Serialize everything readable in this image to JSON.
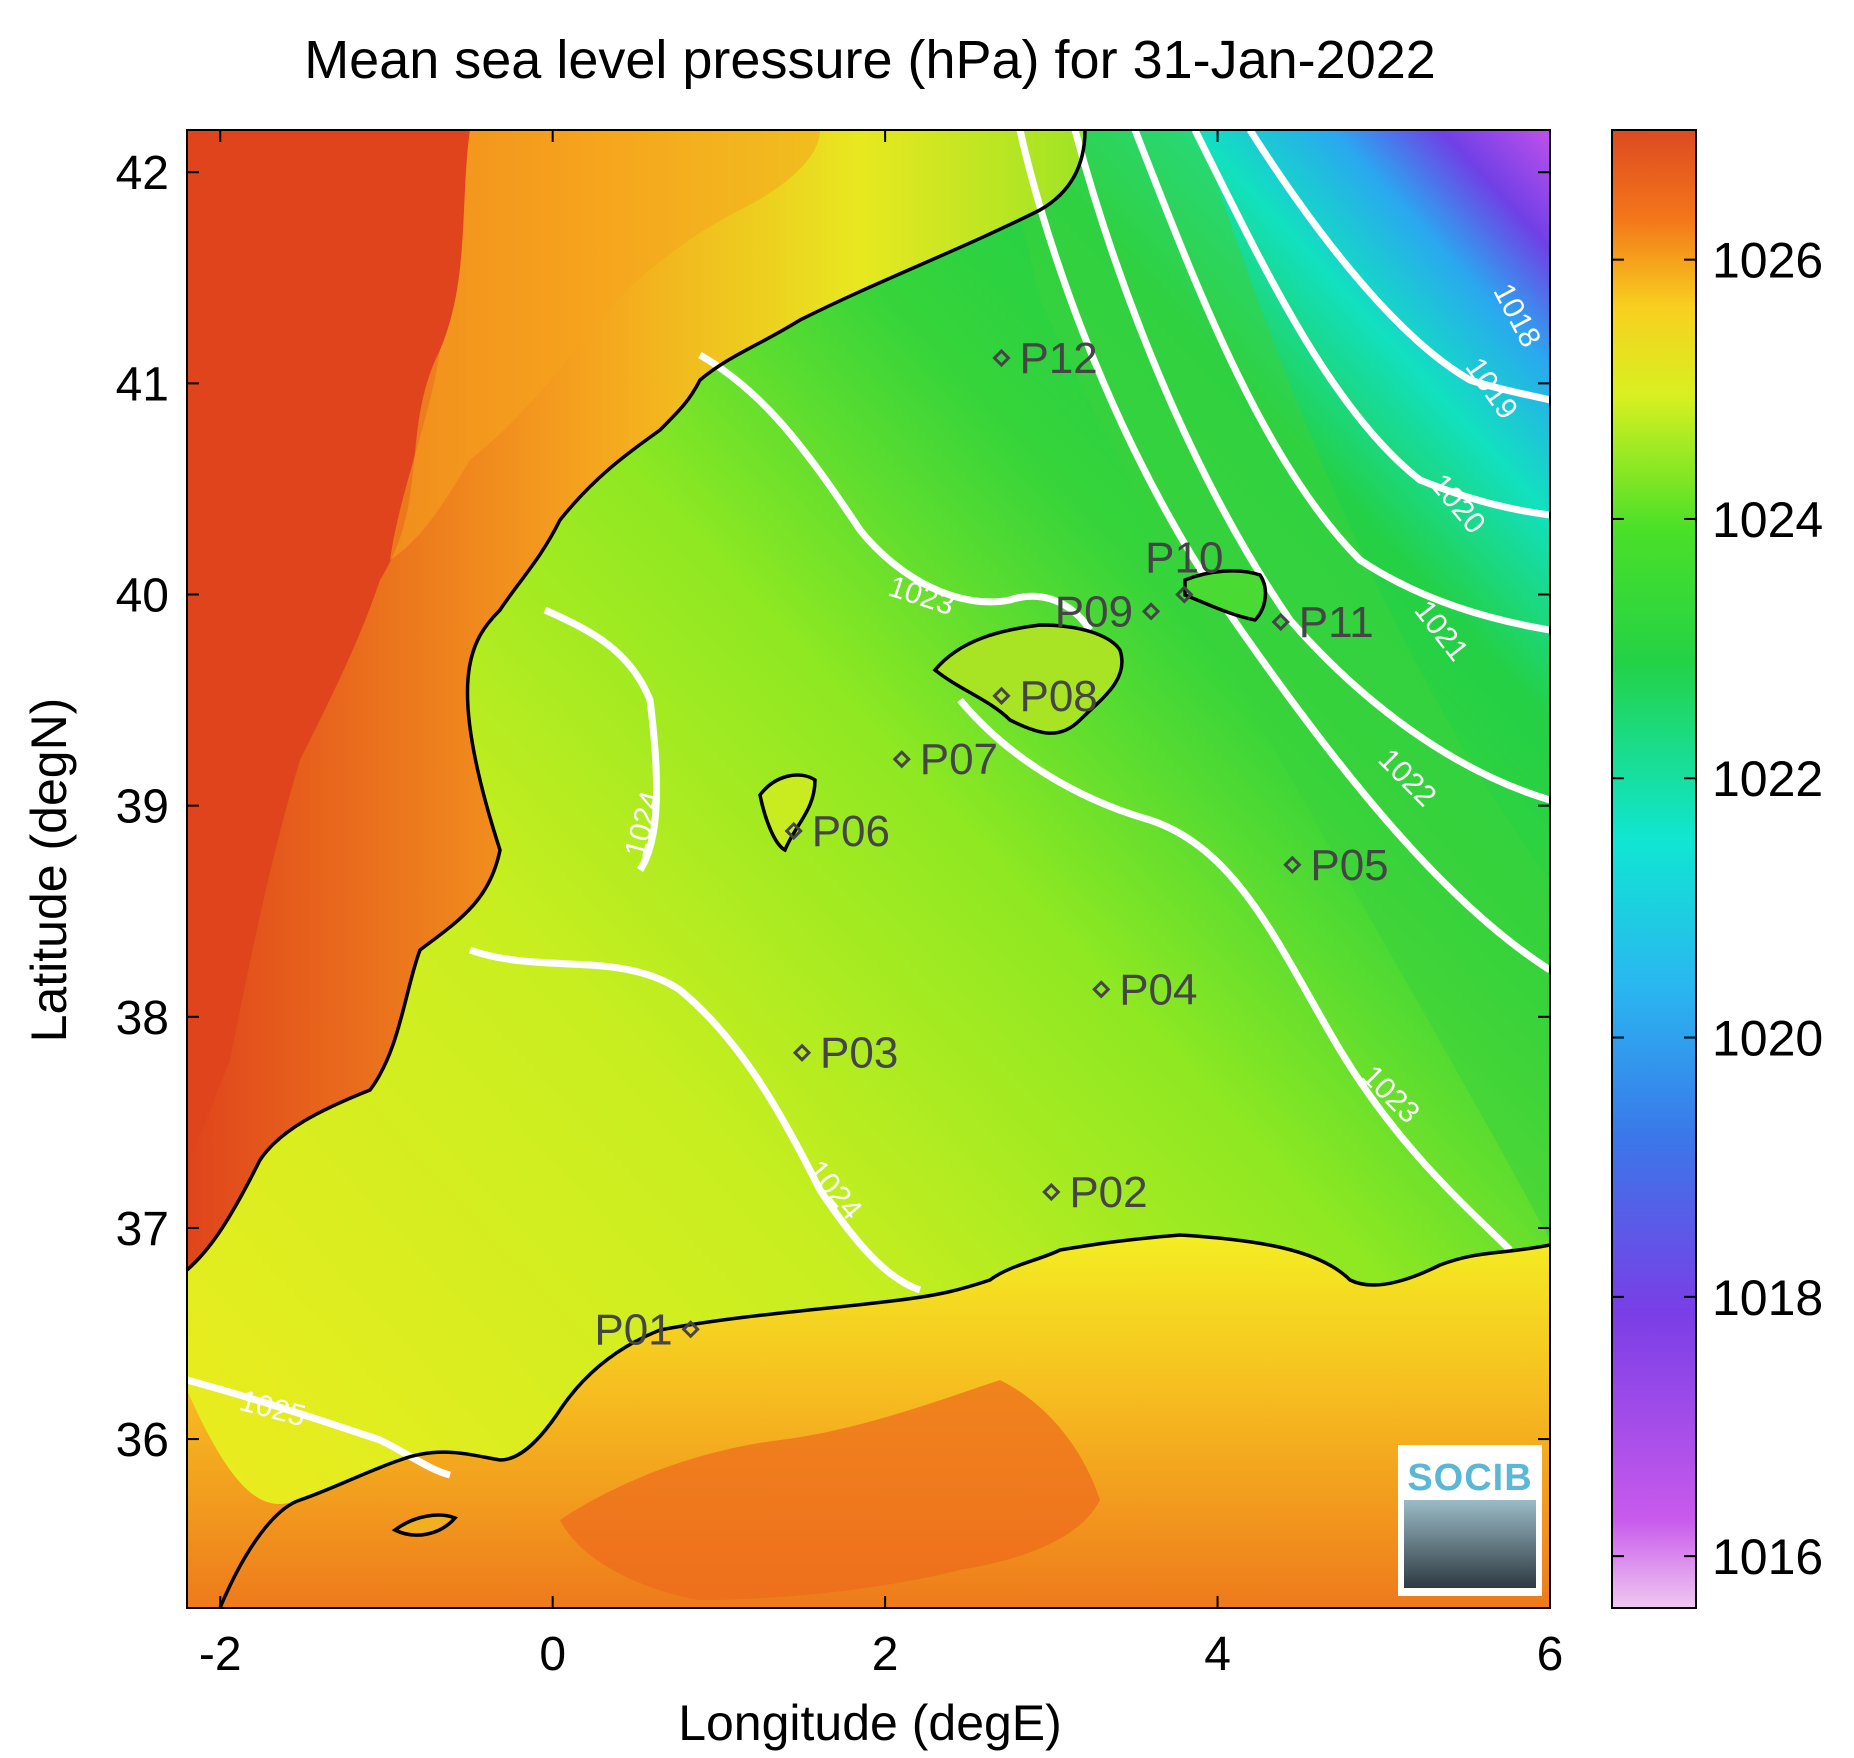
{
  "title": "Mean sea level pressure (hPa) for 31-Jan-2022",
  "xlabel": "Longitude (degE)",
  "ylabel": "Latitude (degN)",
  "logo_text": "SOCIB",
  "colors": {
    "land_high": "#e0441c",
    "land_mid": "#f5a81e",
    "sea_yellow": "#e6f020",
    "sea_green": "#2ed23a",
    "sea_cyan": "#10e6d2",
    "sea_blue": "#3a8ae8",
    "sea_purple": "#8a3ee6",
    "contour": "#ffffff",
    "coast": "#000000",
    "station": "#454545"
  },
  "chart_data": {
    "type": "heatmap",
    "title": "Mean sea level pressure (hPa) for 31-Jan-2022",
    "xlabel": "Longitude (degE)",
    "ylabel": "Latitude (degN)",
    "xlim": [
      -2.2,
      6.0
    ],
    "ylim": [
      35.2,
      42.2
    ],
    "xticks": [
      -2,
      0,
      2,
      4,
      6
    ],
    "xtick_labels": [
      "-2",
      "0",
      "2",
      "4",
      "6"
    ],
    "yticks": [
      36,
      37,
      38,
      39,
      40,
      41,
      42
    ],
    "ytick_labels": [
      "36",
      "37",
      "38",
      "39",
      "40",
      "41",
      "42"
    ],
    "colorbar": {
      "range": [
        1015.6,
        1027.0
      ],
      "ticks": [
        1016,
        1018,
        1020,
        1022,
        1024,
        1026
      ],
      "tick_labels": [
        "1016",
        "1018",
        "1020",
        "1022",
        "1024",
        "1026"
      ],
      "colormap": "jet-like"
    },
    "contour_labels": [
      {
        "text": "1018",
        "lon": 5.75,
        "lat": 41.3,
        "angle": 62
      },
      {
        "text": "1019",
        "lon": 5.6,
        "lat": 40.95,
        "angle": 55
      },
      {
        "text": "1020",
        "lon": 5.4,
        "lat": 40.4,
        "angle": 50
      },
      {
        "text": "1021",
        "lon": 5.3,
        "lat": 39.8,
        "angle": 52
      },
      {
        "text": "1022",
        "lon": 5.1,
        "lat": 39.1,
        "angle": 45
      },
      {
        "text": "1023",
        "lon": 2.2,
        "lat": 39.95,
        "angle": 18
      },
      {
        "text": "1023",
        "lon": 5.0,
        "lat": 37.6,
        "angle": 45
      },
      {
        "text": "1024",
        "lon": 0.6,
        "lat": 38.9,
        "angle": -75
      },
      {
        "text": "1024",
        "lon": 1.65,
        "lat": 37.15,
        "angle": 50
      },
      {
        "text": "1025",
        "lon": -1.7,
        "lat": 36.1,
        "angle": 15
      }
    ],
    "stations": [
      {
        "name": "P01",
        "lon": 0.83,
        "lat": 36.52,
        "label_side": "left"
      },
      {
        "name": "P02",
        "lon": 3.0,
        "lat": 37.17,
        "label_side": "right"
      },
      {
        "name": "P03",
        "lon": 1.5,
        "lat": 37.83,
        "label_side": "right"
      },
      {
        "name": "P04",
        "lon": 3.3,
        "lat": 38.13,
        "label_side": "right"
      },
      {
        "name": "P05",
        "lon": 4.45,
        "lat": 38.72,
        "label_side": "right"
      },
      {
        "name": "P06",
        "lon": 1.45,
        "lat": 38.88,
        "label_side": "right"
      },
      {
        "name": "P07",
        "lon": 2.1,
        "lat": 39.22,
        "label_side": "right"
      },
      {
        "name": "P08",
        "lon": 2.7,
        "lat": 39.52,
        "label_side": "right"
      },
      {
        "name": "P09",
        "lon": 3.6,
        "lat": 39.92,
        "label_side": "left"
      },
      {
        "name": "P10",
        "lon": 3.8,
        "lat": 40.0,
        "label_side": "above"
      },
      {
        "name": "P11",
        "lon": 4.38,
        "lat": 39.87,
        "label_side": "right"
      },
      {
        "name": "P12",
        "lon": 2.7,
        "lat": 41.12,
        "label_side": "right"
      }
    ]
  }
}
